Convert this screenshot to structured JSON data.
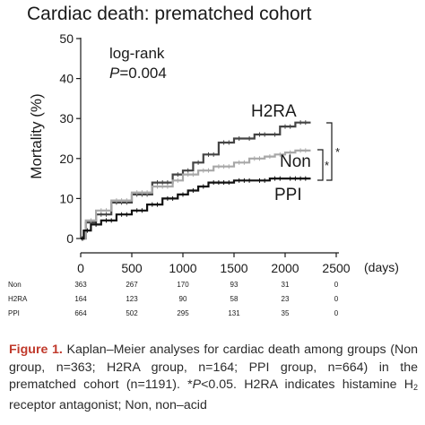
{
  "chart_data": {
    "type": "line",
    "title": "Cardiac death: prematched cohort",
    "ylabel": "Mortality (%)",
    "xlabel": "(days)",
    "xlim": [
      0,
      2500
    ],
    "ylim": [
      0,
      50
    ],
    "xticks": [
      0,
      500,
      1000,
      1500,
      2000,
      2500
    ],
    "yticks": [
      0,
      10,
      20,
      30,
      40,
      50
    ],
    "annotation": {
      "line1": "log-rank",
      "p_label": "P",
      "p_value": "=0.004"
    },
    "significance": {
      "outer": "*",
      "inner": "*"
    },
    "series": [
      {
        "name": "H2RA",
        "color": "#444444",
        "x": [
          0,
          50,
          150,
          300,
          500,
          700,
          900,
          1000,
          1100,
          1200,
          1350,
          1500,
          1600,
          1700,
          1850,
          1950,
          2100,
          2250
        ],
        "y": [
          0,
          4,
          6,
          9,
          11,
          14,
          16,
          17,
          19,
          21,
          24,
          25,
          25,
          26,
          26,
          28,
          29,
          29
        ]
      },
      {
        "name": "Non",
        "color": "#a8a8a8",
        "x": [
          0,
          50,
          150,
          300,
          500,
          700,
          900,
          1000,
          1150,
          1300,
          1500,
          1650,
          1800,
          1900,
          2000,
          2100,
          2250
        ],
        "y": [
          0,
          4.5,
          7,
          9.5,
          11.5,
          13,
          14.5,
          16,
          17,
          18,
          19,
          20,
          20.5,
          21,
          21.5,
          22,
          22
        ]
      },
      {
        "name": "PPI",
        "color": "#111111",
        "x": [
          0,
          30,
          100,
          200,
          350,
          500,
          650,
          800,
          950,
          1050,
          1150,
          1250,
          1500,
          1700,
          1850,
          2000,
          2250
        ],
        "y": [
          0,
          2,
          3.5,
          4.5,
          6,
          7,
          8.5,
          10,
          11,
          12,
          13,
          14,
          14.5,
          14.5,
          15,
          15,
          15
        ]
      }
    ],
    "risk_table": {
      "rows": [
        {
          "label": "Non",
          "values": [
            "363",
            "267",
            "170",
            "93",
            "31",
            "0"
          ]
        },
        {
          "label": "H2RA",
          "values": [
            "164",
            "123",
            "90",
            "58",
            "23",
            "0"
          ]
        },
        {
          "label": "PPI",
          "values": [
            "664",
            "502",
            "295",
            "131",
            "35",
            "0"
          ]
        }
      ]
    }
  },
  "caption": {
    "label": "Figure 1.",
    "part1": " Kaplan–Meier analyses for cardiac death among groups (Non group, n=363; H2RA group, n=164; PPI group, n=664) in the prematched cohort (n=1191). *",
    "p": "P",
    "part2": "<0.05. H2RA indicates histamine H",
    "subscript": "2",
    "part3": " receptor antagonist; Non, non–acid"
  }
}
